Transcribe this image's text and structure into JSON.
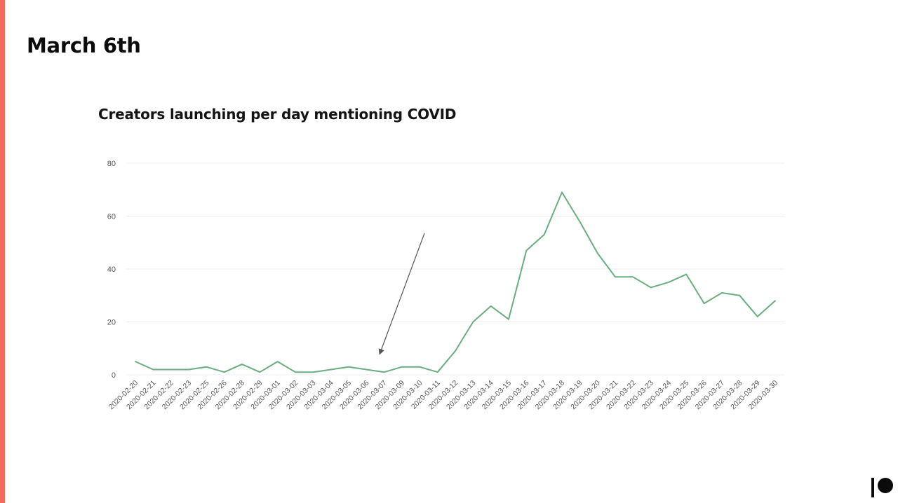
{
  "slide": {
    "title": "March 6th",
    "accent_color": "#f26b5b"
  },
  "chart_data": {
    "type": "line",
    "title": "Creators launching per day mentioning COVID",
    "xlabel": "",
    "ylabel": "",
    "ylim": [
      0,
      80
    ],
    "yticks": [
      0,
      20,
      40,
      60,
      80
    ],
    "grid": true,
    "line_color": "#6aad7e",
    "categories": [
      "2020-02-20",
      "2020-02-21",
      "2020-02-22",
      "2020-02-23",
      "2020-02-25",
      "2020-02-26",
      "2020-02-28",
      "2020-02-29",
      "2020-03-01",
      "2020-03-02",
      "2020-03-03",
      "2020-03-04",
      "2020-03-05",
      "2020-03-06",
      "2020-03-07",
      "2020-03-09",
      "2020-03-10",
      "2020-03-11",
      "2020-03-12",
      "2020-03-13",
      "2020-03-14",
      "2020-03-15",
      "2020-03-16",
      "2020-03-17",
      "2020-03-18",
      "2020-03-19",
      "2020-03-20",
      "2020-03-21",
      "2020-03-22",
      "2020-03-23",
      "2020-03-24",
      "2020-03-25",
      "2020-03-26",
      "2020-03-27",
      "2020-03-28",
      "2020-03-29",
      "2020-03-30"
    ],
    "series": [
      {
        "values": [
          5,
          2,
          2,
          2,
          3,
          1,
          4,
          1,
          5,
          1,
          1,
          2,
          3,
          2,
          1,
          3,
          3,
          1,
          9,
          20,
          26,
          21,
          47,
          53,
          69,
          58,
          46,
          37,
          37,
          33,
          35,
          38,
          27,
          31,
          30,
          22,
          28
        ]
      }
    ],
    "annotations": [
      {
        "type": "arrow",
        "points_to": "2020-03-06",
        "color": "#555555"
      }
    ]
  },
  "brand": {
    "logo_icon": "patreon-logo-icon"
  }
}
